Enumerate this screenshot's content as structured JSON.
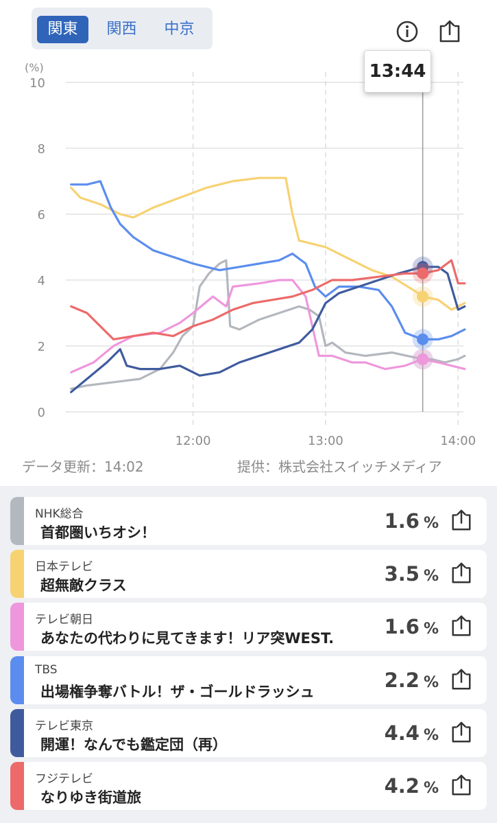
{
  "regions": [
    {
      "label": "関東",
      "active": true
    },
    {
      "label": "関西",
      "active": false
    },
    {
      "label": "中京",
      "active": false
    }
  ],
  "icons": {
    "info": "info-icon",
    "share": "share-icon"
  },
  "tooltip_time": "13:44",
  "update_text": "データ更新：14:02",
  "provider_text": "提供：株式会社スイッチメディア",
  "chart_data": {
    "type": "line",
    "ylabel": "(%)",
    "ylim": [
      0,
      10
    ],
    "yticks": [
      0,
      2,
      4,
      6,
      8,
      10
    ],
    "x_range_minutes": [
      11.04,
      14.04
    ],
    "xticks": [
      {
        "t": 12,
        "label": "12:00"
      },
      {
        "t": 13,
        "label": "13:00"
      },
      {
        "t": 14,
        "label": "14:00"
      }
    ],
    "grid": true,
    "cursor_time": 13.733,
    "series": [
      {
        "name": "NHK総合",
        "color": "#b3b7be",
        "x": [
          11.08,
          11.2,
          11.4,
          11.6,
          11.75,
          11.85,
          11.92,
          12.0,
          12.05,
          12.12,
          12.2,
          12.25,
          12.28,
          12.35,
          12.5,
          12.65,
          12.8,
          12.88,
          12.95,
          13.0,
          13.05,
          13.15,
          13.3,
          13.5,
          13.73,
          13.8,
          13.9,
          14.0,
          14.05
        ],
        "values": [
          0.7,
          0.8,
          0.9,
          1.0,
          1.3,
          1.8,
          2.3,
          2.6,
          3.8,
          4.2,
          4.5,
          4.6,
          2.6,
          2.5,
          2.8,
          3.0,
          3.2,
          3.1,
          2.9,
          2.0,
          2.1,
          1.8,
          1.7,
          1.8,
          1.6,
          1.6,
          1.5,
          1.6,
          1.7
        ]
      },
      {
        "name": "日本テレビ",
        "color": "#f7d272",
        "x": [
          11.08,
          11.15,
          11.3,
          11.45,
          11.55,
          11.7,
          11.9,
          12.1,
          12.3,
          12.5,
          12.7,
          12.75,
          12.8,
          12.9,
          13.0,
          13.2,
          13.35,
          13.5,
          13.7,
          13.73,
          13.85,
          13.95,
          14.05
        ],
        "values": [
          6.8,
          6.5,
          6.3,
          6.0,
          5.9,
          6.2,
          6.5,
          6.8,
          7.0,
          7.1,
          7.1,
          6.0,
          5.2,
          5.1,
          5.0,
          4.6,
          4.3,
          4.1,
          3.6,
          3.5,
          3.4,
          3.1,
          3.3
        ]
      },
      {
        "name": "テレビ朝日",
        "color": "#ee97dc",
        "x": [
          11.08,
          11.25,
          11.4,
          11.55,
          11.75,
          11.9,
          12.0,
          12.15,
          12.25,
          12.3,
          12.5,
          12.65,
          12.75,
          12.85,
          12.95,
          13.05,
          13.2,
          13.3,
          13.45,
          13.6,
          13.73,
          13.85,
          14.05
        ],
        "values": [
          1.2,
          1.5,
          2.0,
          2.3,
          2.4,
          2.7,
          3.0,
          3.5,
          3.2,
          3.8,
          3.9,
          4.0,
          4.0,
          3.5,
          1.7,
          1.7,
          1.5,
          1.5,
          1.3,
          1.4,
          1.6,
          1.5,
          1.3
        ]
      },
      {
        "name": "TBS",
        "color": "#5b8dee",
        "x": [
          11.08,
          11.2,
          11.3,
          11.38,
          11.45,
          11.55,
          11.7,
          11.85,
          12.0,
          12.1,
          12.2,
          12.35,
          12.5,
          12.65,
          12.75,
          12.85,
          12.92,
          13.0,
          13.1,
          13.25,
          13.4,
          13.5,
          13.6,
          13.73,
          13.85,
          13.95,
          14.05
        ],
        "values": [
          6.9,
          6.9,
          7.0,
          6.2,
          5.7,
          5.3,
          4.9,
          4.7,
          4.5,
          4.4,
          4.3,
          4.4,
          4.5,
          4.6,
          4.8,
          4.5,
          3.8,
          3.5,
          3.8,
          3.8,
          3.7,
          3.2,
          2.4,
          2.2,
          2.2,
          2.3,
          2.5
        ]
      },
      {
        "name": "テレビ東京",
        "color": "#3f5b9e",
        "x": [
          11.08,
          11.2,
          11.35,
          11.45,
          11.5,
          11.6,
          11.75,
          11.9,
          12.05,
          12.2,
          12.35,
          12.5,
          12.65,
          12.8,
          12.9,
          13.0,
          13.1,
          13.25,
          13.4,
          13.55,
          13.73,
          13.85,
          13.92,
          14.0,
          14.05
        ],
        "values": [
          0.6,
          1.0,
          1.5,
          1.9,
          1.4,
          1.3,
          1.3,
          1.4,
          1.1,
          1.2,
          1.5,
          1.7,
          1.9,
          2.1,
          2.5,
          3.3,
          3.6,
          3.8,
          4.0,
          4.2,
          4.4,
          4.4,
          4.2,
          3.1,
          3.2
        ]
      },
      {
        "name": "フジテレビ",
        "color": "#ec6a6a",
        "x": [
          11.08,
          11.2,
          11.3,
          11.4,
          11.55,
          11.7,
          11.85,
          12.0,
          12.15,
          12.3,
          12.45,
          12.6,
          12.75,
          12.9,
          13.05,
          13.2,
          13.4,
          13.6,
          13.73,
          13.85,
          13.95,
          14.0,
          14.05
        ],
        "values": [
          3.2,
          3.0,
          2.6,
          2.2,
          2.3,
          2.4,
          2.3,
          2.6,
          2.8,
          3.1,
          3.3,
          3.4,
          3.5,
          3.7,
          4.0,
          4.0,
          4.1,
          4.2,
          4.2,
          4.3,
          4.6,
          3.9,
          3.9
        ]
      }
    ]
  },
  "ratings": [
    {
      "channel": "NHK総合",
      "program": "首都圏いちオシ！",
      "value": "1.6",
      "unit": "%",
      "color": "#b3b7be"
    },
    {
      "channel": "日本テレビ",
      "program": "超無敵クラス",
      "value": "3.5",
      "unit": "%",
      "color": "#f7d272"
    },
    {
      "channel": "テレビ朝日",
      "program": "あなたの代わりに見てきます！リア突WEST.",
      "value": "1.6",
      "unit": "%",
      "color": "#ee97dc"
    },
    {
      "channel": "TBS",
      "program": "出場権争奪バトル！ザ・ゴールドラッシュ",
      "value": "2.2",
      "unit": "%",
      "color": "#5b8dee"
    },
    {
      "channel": "テレビ東京",
      "program": "開運！なんでも鑑定団（再）",
      "value": "4.4",
      "unit": "%",
      "color": "#3f5b9e"
    },
    {
      "channel": "フジテレビ",
      "program": "なりゆき街道旅",
      "value": "4.2",
      "unit": "%",
      "color": "#ec6a6a"
    }
  ]
}
